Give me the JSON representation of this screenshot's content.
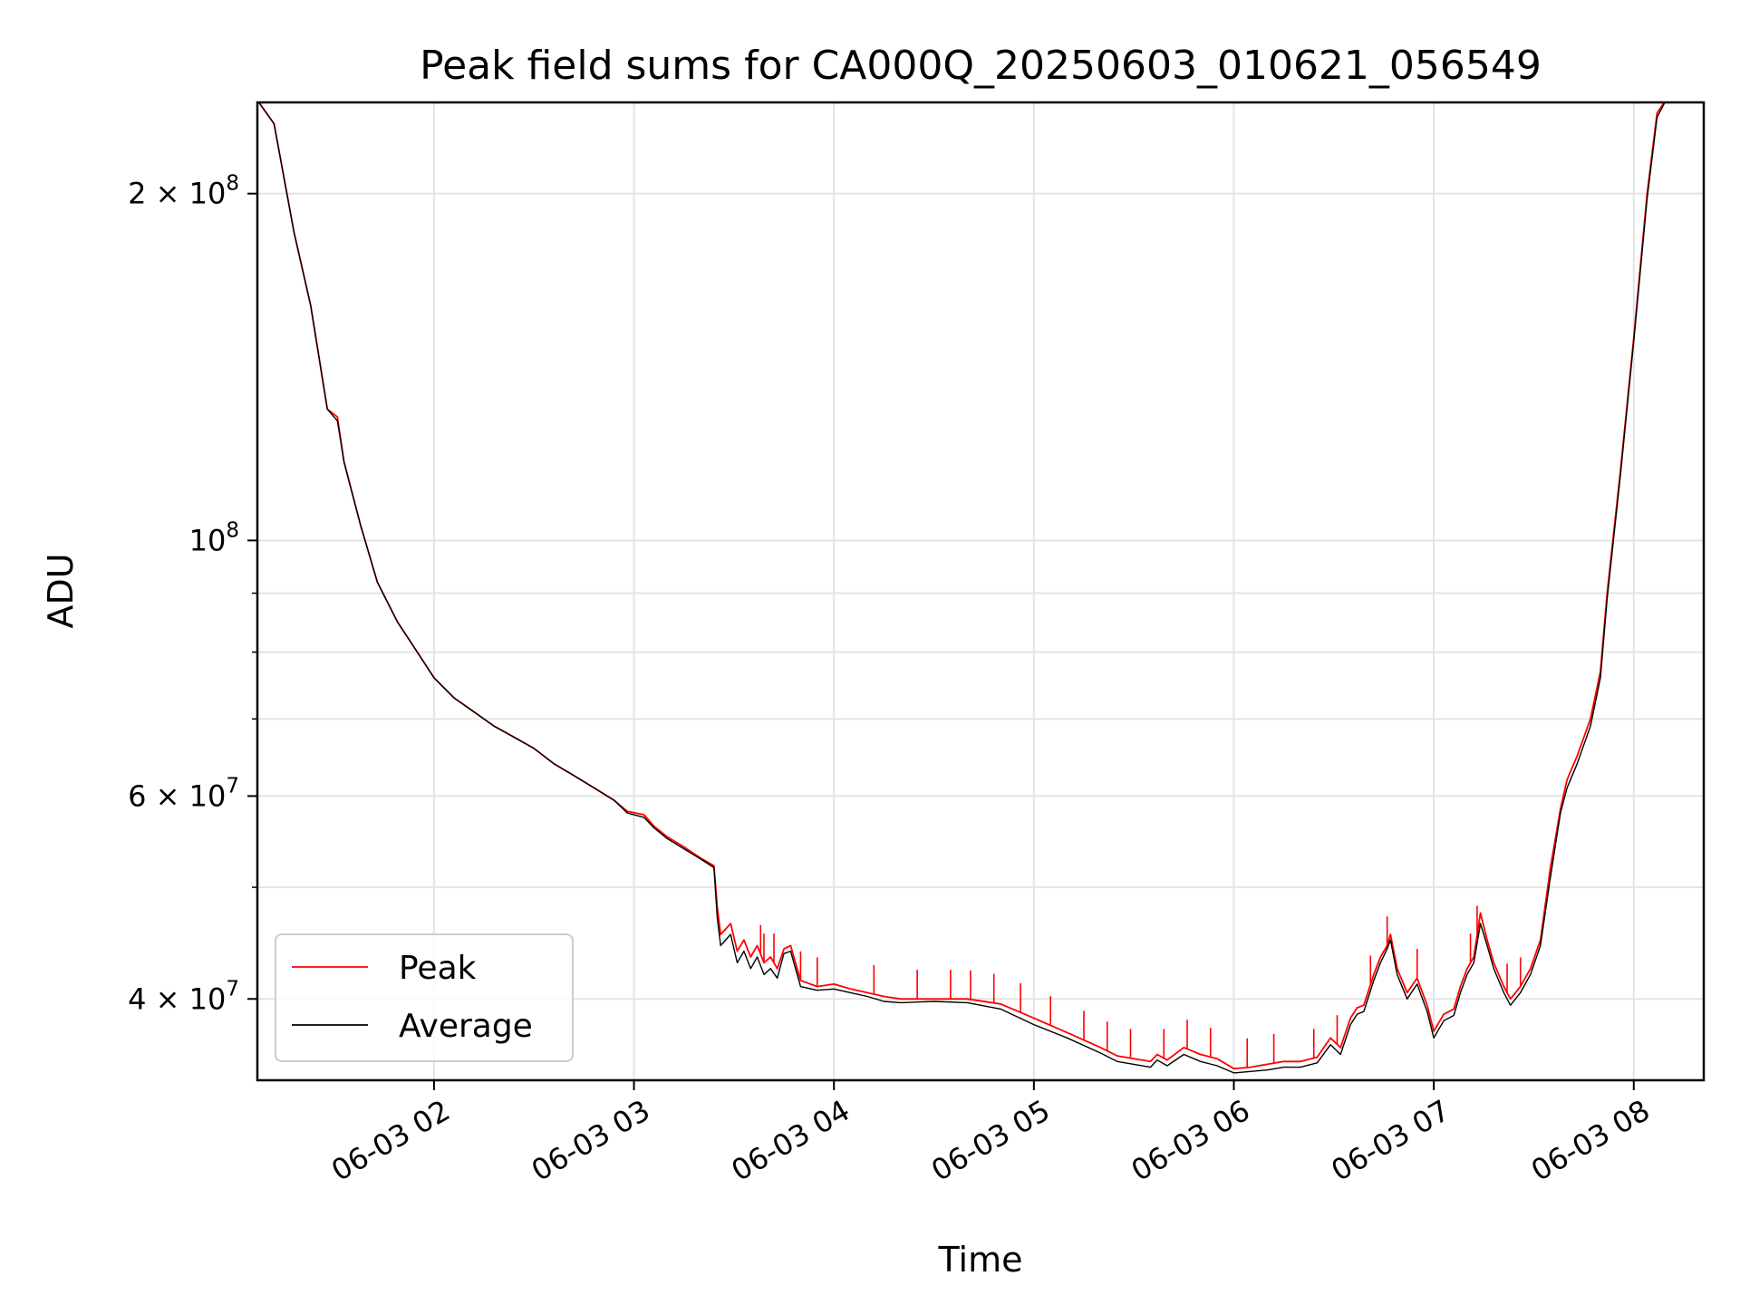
{
  "chart_data": {
    "type": "line",
    "title": "Peak field sums for CA000Q_20250603_010621_056549",
    "xlabel": "Time",
    "ylabel": "ADU",
    "x_unit": "time of day, 2025-06-03",
    "y_scale": "log",
    "ylim": [
      34000000,
      240000000
    ],
    "xlim": [
      "01:07",
      "08:21"
    ],
    "grid": true,
    "legend_position": "lower-left",
    "x_ticks": [
      {
        "value": "02:00",
        "label": "06-03 02"
      },
      {
        "value": "03:00",
        "label": "06-03 03"
      },
      {
        "value": "04:00",
        "label": "06-03 04"
      },
      {
        "value": "05:00",
        "label": "06-03 05"
      },
      {
        "value": "06:00",
        "label": "06-03 06"
      },
      {
        "value": "07:00",
        "label": "06-03 07"
      },
      {
        "value": "08:00",
        "label": "06-03 08"
      }
    ],
    "y_ticks": [
      {
        "value": 40000000,
        "mantissa": "4",
        "base": "10",
        "exp": "7"
      },
      {
        "value": 60000000,
        "mantissa": "6",
        "base": "10",
        "exp": "7"
      },
      {
        "value": 100000000,
        "mantissa": "",
        "base": "10",
        "exp": "8"
      },
      {
        "value": 200000000,
        "mantissa": "2",
        "base": "10",
        "exp": "8"
      }
    ],
    "y_minor_ticks": [
      50000000,
      70000000,
      80000000,
      90000000
    ],
    "series": [
      {
        "name": "Peak",
        "color": "#ff0000",
        "spike_times": [
          "03:38",
          "03:39",
          "03:42",
          "03:50",
          "03:55",
          "04:12",
          "04:25",
          "04:35",
          "04:41",
          "04:48",
          "04:56",
          "05:05",
          "05:15",
          "05:22",
          "05:29",
          "05:39",
          "05:46",
          "05:53",
          "06:04",
          "06:12",
          "06:24",
          "06:31",
          "06:41",
          "06:46",
          "06:55",
          "07:11",
          "07:13",
          "07:22",
          "07:26"
        ],
        "points": [
          [
            "01:07",
            241000000
          ],
          [
            "01:12",
            230000000
          ],
          [
            "01:18",
            185000000
          ],
          [
            "01:23",
            160000000
          ],
          [
            "01:28",
            130000000
          ],
          [
            "01:31",
            128000000
          ],
          [
            "01:33",
            117000000
          ],
          [
            "01:38",
            103000000
          ],
          [
            "01:43",
            92000000
          ],
          [
            "01:49",
            85000000
          ],
          [
            "01:55",
            80000000
          ],
          [
            "02:00",
            76000000
          ],
          [
            "02:06",
            73000000
          ],
          [
            "02:12",
            71000000
          ],
          [
            "02:18",
            69000000
          ],
          [
            "02:24",
            67500000
          ],
          [
            "02:30",
            66000000
          ],
          [
            "02:36",
            64000000
          ],
          [
            "02:42",
            62500000
          ],
          [
            "02:48",
            61000000
          ],
          [
            "02:54",
            59500000
          ],
          [
            "02:58",
            58200000
          ],
          [
            "03:03",
            57800000
          ],
          [
            "03:06",
            56500000
          ],
          [
            "03:10",
            55300000
          ],
          [
            "03:15",
            54200000
          ],
          [
            "03:20",
            53000000
          ],
          [
            "03:24",
            52200000
          ],
          [
            "03:25",
            48000000
          ],
          [
            "03:26",
            45500000
          ],
          [
            "03:29",
            46500000
          ],
          [
            "03:31",
            44000000
          ],
          [
            "03:33",
            45000000
          ],
          [
            "03:35",
            43500000
          ],
          [
            "03:37",
            44500000
          ],
          [
            "03:39",
            43000000
          ],
          [
            "03:41",
            43500000
          ],
          [
            "03:43",
            42500000
          ],
          [
            "03:45",
            44200000
          ],
          [
            "03:47",
            44500000
          ],
          [
            "03:50",
            41500000
          ],
          [
            "03:55",
            41000000
          ],
          [
            "04:00",
            41200000
          ],
          [
            "04:05",
            40800000
          ],
          [
            "04:10",
            40500000
          ],
          [
            "04:15",
            40200000
          ],
          [
            "04:20",
            40000000
          ],
          [
            "04:30",
            40000000
          ],
          [
            "04:40",
            40000000
          ],
          [
            "04:50",
            39600000
          ],
          [
            "05:00",
            38500000
          ],
          [
            "05:10",
            37400000
          ],
          [
            "05:20",
            36300000
          ],
          [
            "05:25",
            35700000
          ],
          [
            "05:30",
            35500000
          ],
          [
            "05:35",
            35300000
          ],
          [
            "05:37",
            35800000
          ],
          [
            "05:40",
            35400000
          ],
          [
            "05:45",
            36300000
          ],
          [
            "05:50",
            35800000
          ],
          [
            "05:55",
            35500000
          ],
          [
            "06:00",
            34800000
          ],
          [
            "06:05",
            34900000
          ],
          [
            "06:10",
            35100000
          ],
          [
            "06:15",
            35300000
          ],
          [
            "06:20",
            35300000
          ],
          [
            "06:25",
            35600000
          ],
          [
            "06:29",
            37000000
          ],
          [
            "06:32",
            36300000
          ],
          [
            "06:35",
            38500000
          ],
          [
            "06:37",
            39300000
          ],
          [
            "06:39",
            39500000
          ],
          [
            "06:42",
            42000000
          ],
          [
            "06:44",
            43500000
          ],
          [
            "06:46",
            44500000
          ],
          [
            "06:47",
            45500000
          ],
          [
            "06:49",
            42500000
          ],
          [
            "06:52",
            40500000
          ],
          [
            "06:55",
            41700000
          ],
          [
            "06:58",
            39500000
          ],
          [
            "07:00",
            37500000
          ],
          [
            "07:03",
            38800000
          ],
          [
            "07:06",
            39200000
          ],
          [
            "07:08",
            41000000
          ],
          [
            "07:10",
            42500000
          ],
          [
            "07:12",
            43500000
          ],
          [
            "07:14",
            47500000
          ],
          [
            "07:16",
            45000000
          ],
          [
            "07:18",
            43000000
          ],
          [
            "07:21",
            41000000
          ],
          [
            "07:23",
            40000000
          ],
          [
            "07:26",
            41000000
          ],
          [
            "07:29",
            42500000
          ],
          [
            "07:32",
            45000000
          ],
          [
            "07:35",
            52000000
          ],
          [
            "07:38",
            58500000
          ],
          [
            "07:40",
            62000000
          ],
          [
            "07:43",
            65000000
          ],
          [
            "07:47",
            70000000
          ],
          [
            "07:50",
            77000000
          ],
          [
            "07:52",
            90000000
          ],
          [
            "07:56",
            115000000
          ],
          [
            "08:00",
            150000000
          ],
          [
            "08:04",
            200000000
          ],
          [
            "08:07",
            235000000
          ],
          [
            "08:10",
            242000000
          ]
        ]
      },
      {
        "name": "Average",
        "color": "#000000",
        "points": [
          [
            "01:07",
            241000000
          ],
          [
            "01:12",
            230000000
          ],
          [
            "01:18",
            185000000
          ],
          [
            "01:23",
            160000000
          ],
          [
            "01:28",
            130000000
          ],
          [
            "01:31",
            127000000
          ],
          [
            "01:33",
            117000000
          ],
          [
            "01:38",
            103000000
          ],
          [
            "01:43",
            92000000
          ],
          [
            "01:49",
            85000000
          ],
          [
            "01:55",
            80000000
          ],
          [
            "02:00",
            76000000
          ],
          [
            "02:06",
            73000000
          ],
          [
            "02:12",
            71000000
          ],
          [
            "02:18",
            69000000
          ],
          [
            "02:24",
            67500000
          ],
          [
            "02:30",
            66000000
          ],
          [
            "02:36",
            64000000
          ],
          [
            "02:42",
            62500000
          ],
          [
            "02:48",
            61000000
          ],
          [
            "02:54",
            59500000
          ],
          [
            "02:58",
            58000000
          ],
          [
            "03:03",
            57500000
          ],
          [
            "03:06",
            56300000
          ],
          [
            "03:10",
            55100000
          ],
          [
            "03:15",
            54000000
          ],
          [
            "03:20",
            52900000
          ],
          [
            "03:24",
            52000000
          ],
          [
            "03:25",
            47000000
          ],
          [
            "03:26",
            44500000
          ],
          [
            "03:29",
            45500000
          ],
          [
            "03:31",
            43000000
          ],
          [
            "03:33",
            44000000
          ],
          [
            "03:35",
            42500000
          ],
          [
            "03:37",
            43500000
          ],
          [
            "03:39",
            42000000
          ],
          [
            "03:41",
            42500000
          ],
          [
            "03:43",
            41700000
          ],
          [
            "03:45",
            43800000
          ],
          [
            "03:47",
            44000000
          ],
          [
            "03:50",
            41000000
          ],
          [
            "03:55",
            40700000
          ],
          [
            "04:00",
            40800000
          ],
          [
            "04:05",
            40500000
          ],
          [
            "04:10",
            40200000
          ],
          [
            "04:15",
            39800000
          ],
          [
            "04:20",
            39700000
          ],
          [
            "04:30",
            39800000
          ],
          [
            "04:40",
            39700000
          ],
          [
            "04:50",
            39200000
          ],
          [
            "05:00",
            38000000
          ],
          [
            "05:10",
            37000000
          ],
          [
            "05:20",
            35900000
          ],
          [
            "05:25",
            35300000
          ],
          [
            "05:30",
            35100000
          ],
          [
            "05:35",
            34900000
          ],
          [
            "05:37",
            35400000
          ],
          [
            "05:40",
            35000000
          ],
          [
            "05:45",
            35800000
          ],
          [
            "05:50",
            35300000
          ],
          [
            "05:55",
            35000000
          ],
          [
            "06:00",
            34500000
          ],
          [
            "06:05",
            34600000
          ],
          [
            "06:10",
            34700000
          ],
          [
            "06:15",
            34900000
          ],
          [
            "06:20",
            34900000
          ],
          [
            "06:25",
            35200000
          ],
          [
            "06:29",
            36500000
          ],
          [
            "06:32",
            35800000
          ],
          [
            "06:35",
            38000000
          ],
          [
            "06:37",
            38800000
          ],
          [
            "06:39",
            39000000
          ],
          [
            "06:42",
            41500000
          ],
          [
            "06:44",
            43000000
          ],
          [
            "06:46",
            44200000
          ],
          [
            "06:47",
            45000000
          ],
          [
            "06:49",
            42000000
          ],
          [
            "06:52",
            40000000
          ],
          [
            "06:55",
            41200000
          ],
          [
            "06:58",
            39000000
          ],
          [
            "07:00",
            37000000
          ],
          [
            "07:03",
            38300000
          ],
          [
            "07:06",
            38700000
          ],
          [
            "07:08",
            40500000
          ],
          [
            "07:10",
            42000000
          ],
          [
            "07:12",
            43000000
          ],
          [
            "07:14",
            46500000
          ],
          [
            "07:16",
            44500000
          ],
          [
            "07:18",
            42500000
          ],
          [
            "07:21",
            40500000
          ],
          [
            "07:23",
            39500000
          ],
          [
            "07:26",
            40500000
          ],
          [
            "07:29",
            42000000
          ],
          [
            "07:32",
            44500000
          ],
          [
            "07:35",
            51000000
          ],
          [
            "07:38",
            58000000
          ],
          [
            "07:40",
            61000000
          ],
          [
            "07:43",
            64000000
          ],
          [
            "07:47",
            69000000
          ],
          [
            "07:50",
            76000000
          ],
          [
            "07:52",
            89000000
          ],
          [
            "07:56",
            114000000
          ],
          [
            "08:00",
            149000000
          ],
          [
            "08:04",
            198000000
          ],
          [
            "08:07",
            233000000
          ],
          [
            "08:10",
            242000000
          ]
        ]
      }
    ]
  }
}
